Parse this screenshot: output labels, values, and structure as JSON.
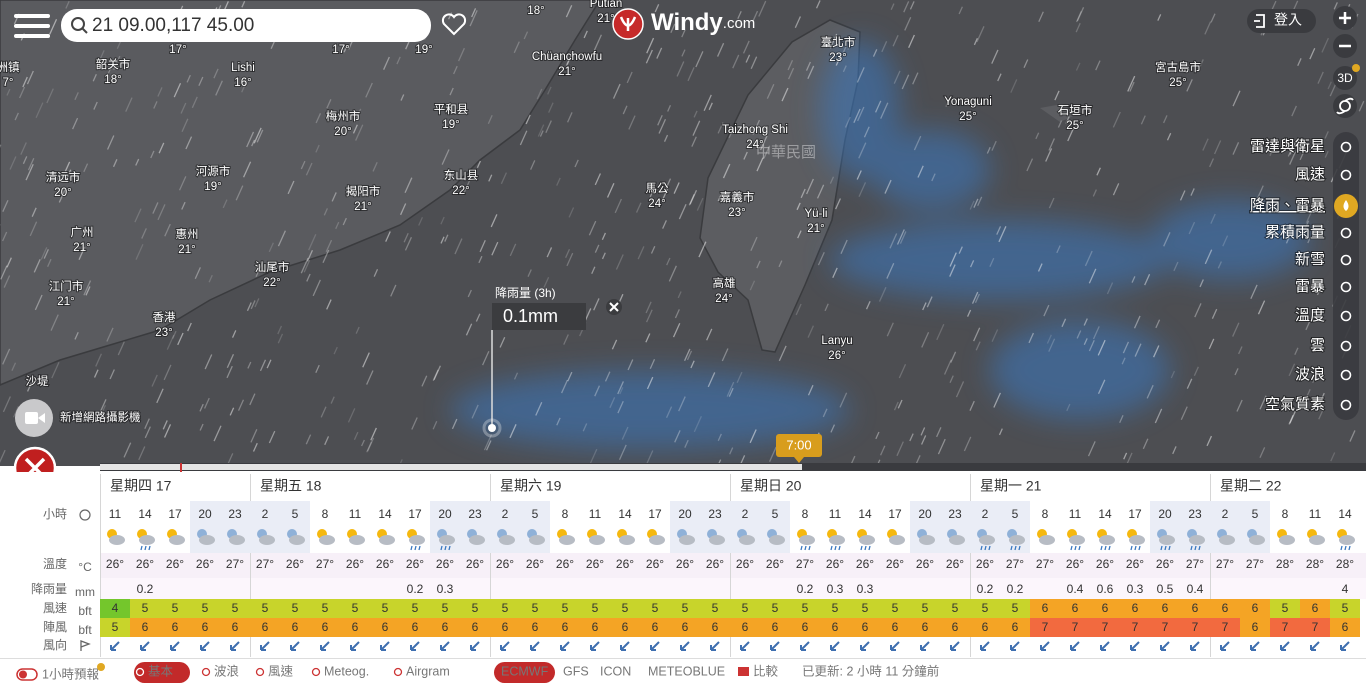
{
  "header": {
    "search": "21 09.00,117 45.00",
    "logo": "Windy",
    "logo_suffix": ".com",
    "login": "登入"
  },
  "map_labels": [
    {
      "name": "洲镇",
      "temp": "7°"
    },
    {
      "name": "韶关市",
      "temp": "18°"
    },
    {
      "name": "Lishi",
      "temp": "16°"
    },
    {
      "temp": "17°"
    },
    {
      "temp": "17°"
    },
    {
      "temp": "19°"
    },
    {
      "temp": "18°"
    },
    {
      "name": "Putian",
      "temp": "21°"
    },
    {
      "name": "Chüanchowfu",
      "temp": "21°"
    },
    {
      "name": "梅州市",
      "temp": "20°"
    },
    {
      "name": "平和县",
      "temp": "19°"
    },
    {
      "name": "清远市",
      "temp": "20°"
    },
    {
      "name": "河源市",
      "temp": "19°"
    },
    {
      "name": "揭阳市",
      "temp": "21°"
    },
    {
      "name": "东山县",
      "temp": "22°"
    },
    {
      "name": "广州",
      "temp": "21°"
    },
    {
      "name": "惠州",
      "temp": "21°"
    },
    {
      "name": "汕尾市",
      "temp": "22°"
    },
    {
      "name": "江门市",
      "temp": "21°"
    },
    {
      "name": "香港",
      "temp": "23°"
    },
    {
      "name": "沙堤"
    },
    {
      "name": "馬公",
      "temp": "24°"
    },
    {
      "name": "Taizhong Shi",
      "temp": "24°"
    },
    {
      "name": "嘉義市",
      "temp": "23°"
    },
    {
      "name": "Yü-li",
      "temp": "21°"
    },
    {
      "name": "高雄",
      "temp": "24°"
    },
    {
      "name": "Lanyu",
      "temp": "26°"
    },
    {
      "name": "臺北市",
      "temp": "23°"
    },
    {
      "name": "Yonaguni",
      "temp": "25°"
    },
    {
      "name": "石垣市",
      "temp": "25°"
    },
    {
      "name": "宮古島市",
      "temp": "25°"
    }
  ],
  "country_label": "中華民國",
  "popup": {
    "title": "降雨量 (3h)",
    "value": "0.1mm"
  },
  "webcam": "新增網路攝影機",
  "map_controls": [
    "3D"
  ],
  "layers": [
    {
      "label": "雷達與衛星"
    },
    {
      "label": "風速"
    },
    {
      "label": "降雨、雷暴",
      "active": true
    },
    {
      "label": "累積雨量",
      "small": true
    },
    {
      "label": "新雪",
      "small": true
    },
    {
      "label": "雷暴",
      "small": true
    },
    {
      "label": "溫度"
    },
    {
      "label": "雲"
    },
    {
      "label": "波浪"
    },
    {
      "label": "空氣質素"
    }
  ],
  "timeline": {
    "time": "7:00"
  },
  "forecast": {
    "row_labels": {
      "hours": "小時",
      "temp": "溫度",
      "temp_unit": "°C",
      "rain": "降雨量",
      "rain_unit": "mm",
      "wind": "風速",
      "wind_unit": "bft",
      "gust": "陣風",
      "gust_unit": "bft",
      "direction": "風向"
    },
    "bft_colors": {
      "4": "#74c62c",
      "5": "#c8d42b",
      "6": "#f4a425",
      "7": "#f26a3f"
    },
    "days": [
      {
        "label": "星期四 17",
        "hours": [
          11,
          14,
          17,
          20,
          23
        ],
        "temps": [
          "26°",
          "26°",
          "26°",
          "26°",
          "27°"
        ],
        "rain": [
          null,
          0.2,
          null,
          null,
          null
        ],
        "wind": [
          4,
          5,
          5,
          5,
          5
        ],
        "gust": [
          5,
          6,
          6,
          6,
          6
        ]
      },
      {
        "label": "星期五 18",
        "hours": [
          2,
          5,
          8,
          11,
          14,
          17,
          20,
          23
        ],
        "temps": [
          "27°",
          "26°",
          "27°",
          "26°",
          "26°",
          "26°",
          "26°",
          "26°"
        ],
        "rain": [
          null,
          null,
          null,
          null,
          null,
          0.2,
          0.3,
          null
        ],
        "wind": [
          5,
          5,
          5,
          5,
          5,
          5,
          5,
          5
        ],
        "gust": [
          6,
          6,
          6,
          6,
          6,
          6,
          6,
          6
        ]
      },
      {
        "label": "星期六 19",
        "hours": [
          2,
          5,
          8,
          11,
          14,
          17,
          20,
          23
        ],
        "temps": [
          "26°",
          "26°",
          "26°",
          "26°",
          "26°",
          "26°",
          "26°",
          "26°"
        ],
        "rain": [
          null,
          null,
          null,
          null,
          null,
          null,
          null,
          null
        ],
        "wind": [
          5,
          5,
          5,
          5,
          5,
          5,
          5,
          5
        ],
        "gust": [
          6,
          6,
          6,
          6,
          6,
          6,
          6,
          6
        ]
      },
      {
        "label": "星期日 20",
        "hours": [
          2,
          5,
          8,
          11,
          14,
          17,
          20,
          23
        ],
        "temps": [
          "26°",
          "26°",
          "27°",
          "26°",
          "26°",
          "26°",
          "26°",
          "26°"
        ],
        "rain": [
          null,
          null,
          0.2,
          0.3,
          0.3,
          null,
          null,
          null
        ],
        "wind": [
          5,
          5,
          5,
          5,
          5,
          5,
          5,
          5
        ],
        "gust": [
          6,
          6,
          6,
          6,
          6,
          6,
          6,
          6
        ]
      },
      {
        "label": "星期一 21",
        "hours": [
          2,
          5,
          8,
          11,
          14,
          17,
          20,
          23
        ],
        "temps": [
          "26°",
          "27°",
          "27°",
          "26°",
          "26°",
          "26°",
          "26°",
          "27°"
        ],
        "rain": [
          0.2,
          0.2,
          null,
          0.4,
          0.6,
          0.3,
          0.5,
          0.4
        ],
        "wind": [
          5,
          5,
          6,
          6,
          6,
          6,
          6,
          6
        ],
        "gust": [
          6,
          6,
          7,
          7,
          7,
          7,
          7,
          7
        ]
      },
      {
        "label": "星期二 22",
        "hours": [
          2,
          5,
          8,
          11,
          14
        ],
        "temps": [
          "27°",
          "27°",
          "28°",
          "28°",
          "28°"
        ],
        "rain": [
          null,
          null,
          null,
          null,
          4
        ],
        "wind": [
          6,
          6,
          5,
          6,
          5
        ],
        "gust": [
          7,
          6,
          7,
          7,
          6
        ]
      }
    ]
  },
  "footer": {
    "hourly": "1小時預報",
    "tabs": [
      {
        "label": "基本",
        "active": true
      },
      {
        "label": "波浪"
      },
      {
        "label": "風速"
      },
      {
        "label": "Meteog."
      },
      {
        "label": "Airgram"
      }
    ],
    "models": [
      {
        "label": "ECMWF",
        "active": true
      },
      {
        "label": "GFS"
      },
      {
        "label": "ICON"
      },
      {
        "label": "METEOBLUE"
      },
      {
        "label": "比較"
      }
    ],
    "updated": "已更新: 2 小時 11 分鐘前"
  }
}
